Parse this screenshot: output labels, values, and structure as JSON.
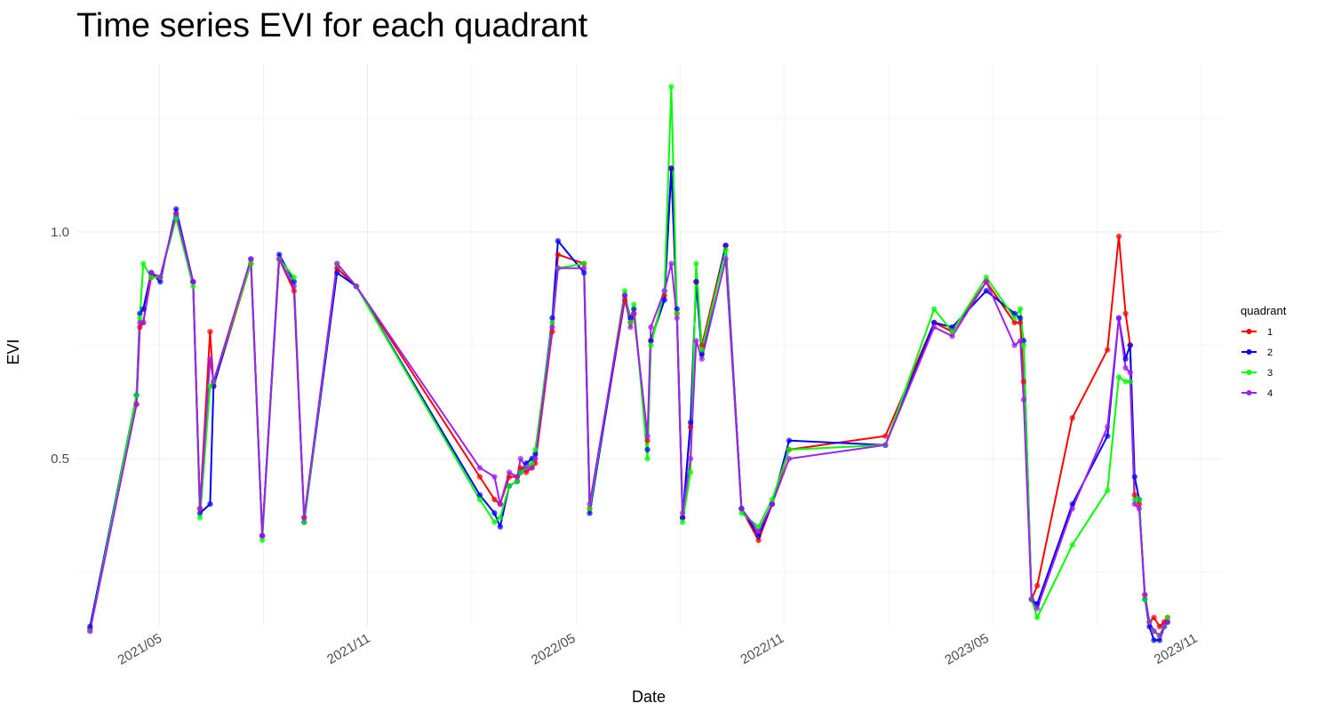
{
  "chart_data": {
    "type": "line",
    "title": "Time series EVI for each quadrant",
    "xlabel": "Date",
    "ylabel": "EVI",
    "ylim": [
      0.13,
      1.37
    ],
    "xlim": [
      "2021-02-17",
      "2023-11-25"
    ],
    "y_ticks": [
      0.5,
      1.0
    ],
    "y_tick_labels": [
      "0.5",
      "1.0"
    ],
    "x_ticks": [
      "2021-05-01",
      "2021-11-01",
      "2022-05-01",
      "2022-11-01",
      "2023-05-01",
      "2023-11-01"
    ],
    "x_tick_labels": [
      "2021/05",
      "2021/11",
      "2022/05",
      "2022/11",
      "2023/05",
      "2023/11"
    ],
    "grid": true,
    "legend": {
      "title": "quadrant",
      "position": "right"
    },
    "series": [
      {
        "name": "1",
        "color": "#ff0000",
        "x": [
          "2021-03-01",
          "2021-04-11",
          "2021-04-14",
          "2021-04-17",
          "2021-04-24",
          "2021-05-02",
          "2021-05-16",
          "2021-05-31",
          "2021-06-06",
          "2021-06-15",
          "2021-06-18",
          "2021-07-21",
          "2021-07-31",
          "2021-08-15",
          "2021-08-28",
          "2021-09-06",
          "2021-10-05",
          "2021-10-22",
          "2022-02-08",
          "2022-02-21",
          "2022-02-26",
          "2022-03-06",
          "2022-03-13",
          "2022-03-16",
          "2022-03-21",
          "2022-03-26",
          "2022-03-29",
          "2022-04-13",
          "2022-04-18",
          "2022-05-11",
          "2022-05-16",
          "2022-06-16",
          "2022-06-21",
          "2022-06-24",
          "2022-07-06",
          "2022-07-09",
          "2022-07-21",
          "2022-07-27",
          "2022-08-01",
          "2022-08-06",
          "2022-08-13",
          "2022-08-18",
          "2022-08-23",
          "2022-09-13",
          "2022-09-27",
          "2022-10-12",
          "2022-10-24",
          "2022-11-08",
          "2023-02-01",
          "2023-03-16",
          "2023-04-01",
          "2023-05-01",
          "2023-05-26",
          "2023-05-31",
          "2023-06-03",
          "2023-06-10",
          "2023-06-15",
          "2023-07-16",
          "2023-08-16",
          "2023-08-26",
          "2023-09-01",
          "2023-09-05",
          "2023-09-09",
          "2023-09-13",
          "2023-09-18",
          "2023-09-22",
          "2023-09-26",
          "2023-10-01",
          "2023-10-05",
          "2023-10-08"
        ],
        "y": [
          0.125,
          0.62,
          0.79,
          0.8,
          0.9,
          0.9,
          1.04,
          0.89,
          0.39,
          0.78,
          0.66,
          0.93,
          0.33,
          0.94,
          0.87,
          0.37,
          0.92,
          0.88,
          0.46,
          0.41,
          0.4,
          0.46,
          0.46,
          0.48,
          0.47,
          0.48,
          0.49,
          0.78,
          0.95,
          0.93,
          0.39,
          0.85,
          0.8,
          0.82,
          0.54,
          0.76,
          0.86,
          1.14,
          0.82,
          0.37,
          0.57,
          0.89,
          0.75,
          0.97,
          0.39,
          0.32,
          0.4,
          0.52,
          0.55,
          0.8,
          0.78,
          0.89,
          0.8,
          0.8,
          0.67,
          0.19,
          0.22,
          0.59,
          0.74,
          0.99,
          0.82,
          0.75,
          0.42,
          0.4,
          0.2,
          0.14,
          0.15,
          0.13,
          0.14,
          0.15
        ]
      },
      {
        "name": "2",
        "color": "#0000ff",
        "x": [
          "2021-03-01",
          "2021-04-11",
          "2021-04-14",
          "2021-04-17",
          "2021-04-24",
          "2021-05-02",
          "2021-05-16",
          "2021-05-31",
          "2021-06-06",
          "2021-06-15",
          "2021-06-18",
          "2021-07-21",
          "2021-07-31",
          "2021-08-15",
          "2021-08-28",
          "2021-09-06",
          "2021-10-05",
          "2021-10-22",
          "2022-02-08",
          "2022-02-21",
          "2022-02-26",
          "2022-03-06",
          "2022-03-13",
          "2022-03-16",
          "2022-03-21",
          "2022-03-26",
          "2022-03-29",
          "2022-04-13",
          "2022-04-18",
          "2022-05-11",
          "2022-05-16",
          "2022-06-16",
          "2022-06-21",
          "2022-06-24",
          "2022-07-06",
          "2022-07-09",
          "2022-07-21",
          "2022-07-27",
          "2022-08-01",
          "2022-08-06",
          "2022-08-13",
          "2022-08-18",
          "2022-08-23",
          "2022-09-13",
          "2022-09-27",
          "2022-10-12",
          "2022-10-24",
          "2022-11-08",
          "2023-02-01",
          "2023-03-16",
          "2023-04-01",
          "2023-05-01",
          "2023-05-26",
          "2023-05-31",
          "2023-06-03",
          "2023-06-10",
          "2023-06-15",
          "2023-07-16",
          "2023-08-16",
          "2023-08-26",
          "2023-09-01",
          "2023-09-05",
          "2023-09-09",
          "2023-09-13",
          "2023-09-18",
          "2023-09-22",
          "2023-09-26",
          "2023-10-01",
          "2023-10-05",
          "2023-10-08"
        ],
        "y": [
          0.13,
          0.64,
          0.82,
          0.83,
          0.91,
          0.89,
          1.05,
          0.89,
          0.38,
          0.4,
          0.66,
          0.94,
          0.33,
          0.95,
          0.89,
          0.36,
          0.91,
          0.88,
          0.42,
          0.38,
          0.35,
          0.44,
          0.45,
          0.47,
          0.49,
          0.5,
          0.51,
          0.81,
          0.98,
          0.91,
          0.38,
          0.86,
          0.81,
          0.83,
          0.52,
          0.76,
          0.85,
          1.14,
          0.83,
          0.37,
          0.58,
          0.89,
          0.73,
          0.97,
          0.39,
          0.33,
          0.4,
          0.54,
          0.53,
          0.8,
          0.79,
          0.87,
          0.82,
          0.81,
          0.76,
          0.19,
          0.18,
          0.4,
          0.55,
          0.81,
          0.72,
          0.75,
          0.46,
          0.41,
          0.19,
          0.13,
          0.1,
          0.1,
          0.13,
          0.14
        ]
      },
      {
        "name": "3",
        "color": "#00ff00",
        "x": [
          "2021-03-01",
          "2021-04-11",
          "2021-04-14",
          "2021-04-17",
          "2021-04-24",
          "2021-05-02",
          "2021-05-16",
          "2021-05-31",
          "2021-06-06",
          "2021-06-15",
          "2021-06-18",
          "2021-07-21",
          "2021-07-31",
          "2021-08-15",
          "2021-08-28",
          "2021-09-06",
          "2021-10-05",
          "2021-10-22",
          "2022-02-08",
          "2022-02-21",
          "2022-02-26",
          "2022-03-06",
          "2022-03-13",
          "2022-03-16",
          "2022-03-21",
          "2022-03-26",
          "2022-03-29",
          "2022-04-13",
          "2022-04-18",
          "2022-05-11",
          "2022-05-16",
          "2022-06-16",
          "2022-06-21",
          "2022-06-24",
          "2022-07-06",
          "2022-07-09",
          "2022-07-21",
          "2022-07-27",
          "2022-08-01",
          "2022-08-06",
          "2022-08-13",
          "2022-08-18",
          "2022-08-23",
          "2022-09-13",
          "2022-09-27",
          "2022-10-12",
          "2022-10-24",
          "2022-11-08",
          "2023-02-01",
          "2023-03-16",
          "2023-04-01",
          "2023-05-01",
          "2023-05-26",
          "2023-05-31",
          "2023-06-03",
          "2023-06-10",
          "2023-06-15",
          "2023-07-16",
          "2023-08-16",
          "2023-08-26",
          "2023-09-01",
          "2023-09-05",
          "2023-09-09",
          "2023-09-13",
          "2023-09-18",
          "2023-09-22",
          "2023-09-26",
          "2023-10-01",
          "2023-10-05",
          "2023-10-08"
        ],
        "y": [
          0.12,
          0.64,
          0.81,
          0.93,
          0.9,
          0.9,
          1.03,
          0.88,
          0.37,
          0.66,
          0.67,
          0.93,
          0.32,
          0.94,
          0.9,
          0.36,
          0.93,
          0.88,
          0.41,
          0.36,
          0.37,
          0.44,
          0.45,
          0.47,
          0.48,
          0.49,
          0.52,
          0.8,
          0.92,
          0.93,
          0.39,
          0.87,
          0.8,
          0.84,
          0.5,
          0.75,
          0.87,
          1.32,
          0.82,
          0.36,
          0.47,
          0.93,
          0.74,
          0.96,
          0.38,
          0.35,
          0.41,
          0.52,
          0.53,
          0.83,
          0.78,
          0.9,
          0.81,
          0.83,
          0.75,
          0.19,
          0.15,
          0.31,
          0.43,
          0.68,
          0.67,
          0.67,
          0.41,
          0.41,
          0.19,
          0.14,
          0.12,
          0.11,
          0.13,
          0.15
        ]
      },
      {
        "name": "4",
        "color": "#a020f0",
        "x": [
          "2021-03-01",
          "2021-04-11",
          "2021-04-14",
          "2021-04-17",
          "2021-04-24",
          "2021-05-02",
          "2021-05-16",
          "2021-05-31",
          "2021-06-06",
          "2021-06-15",
          "2021-06-18",
          "2021-07-21",
          "2021-07-31",
          "2021-08-15",
          "2021-08-28",
          "2021-09-06",
          "2021-10-05",
          "2021-10-22",
          "2022-02-08",
          "2022-02-21",
          "2022-02-26",
          "2022-03-06",
          "2022-03-13",
          "2022-03-16",
          "2022-03-21",
          "2022-03-26",
          "2022-03-29",
          "2022-04-13",
          "2022-04-18",
          "2022-05-11",
          "2022-05-16",
          "2022-06-16",
          "2022-06-21",
          "2022-06-24",
          "2022-07-06",
          "2022-07-09",
          "2022-07-21",
          "2022-07-27",
          "2022-08-01",
          "2022-08-06",
          "2022-08-13",
          "2022-08-18",
          "2022-08-23",
          "2022-09-13",
          "2022-09-27",
          "2022-10-12",
          "2022-10-24",
          "2022-11-08",
          "2023-02-01",
          "2023-03-16",
          "2023-04-01",
          "2023-05-01",
          "2023-05-26",
          "2023-05-31",
          "2023-06-03",
          "2023-06-10",
          "2023-06-15",
          "2023-07-16",
          "2023-08-16",
          "2023-08-26",
          "2023-09-01",
          "2023-09-05",
          "2023-09-09",
          "2023-09-13",
          "2023-09-18",
          "2023-09-22",
          "2023-09-26",
          "2023-10-01",
          "2023-10-05",
          "2023-10-08"
        ],
        "y": [
          0.12,
          0.62,
          0.8,
          0.8,
          0.91,
          0.9,
          1.04,
          0.89,
          0.39,
          0.72,
          0.67,
          0.94,
          0.33,
          0.94,
          0.88,
          0.37,
          0.93,
          0.88,
          0.48,
          0.46,
          0.4,
          0.47,
          0.46,
          0.5,
          0.48,
          0.48,
          0.5,
          0.79,
          0.92,
          0.92,
          0.4,
          0.86,
          0.79,
          0.82,
          0.55,
          0.79,
          0.87,
          0.93,
          0.81,
          0.38,
          0.5,
          0.76,
          0.72,
          0.94,
          0.39,
          0.34,
          0.4,
          0.5,
          0.53,
          0.79,
          0.77,
          0.89,
          0.75,
          0.76,
          0.63,
          0.19,
          0.17,
          0.39,
          0.57,
          0.81,
          0.7,
          0.69,
          0.4,
          0.39,
          0.2,
          0.14,
          0.12,
          0.11,
          0.13,
          0.14
        ]
      }
    ]
  }
}
